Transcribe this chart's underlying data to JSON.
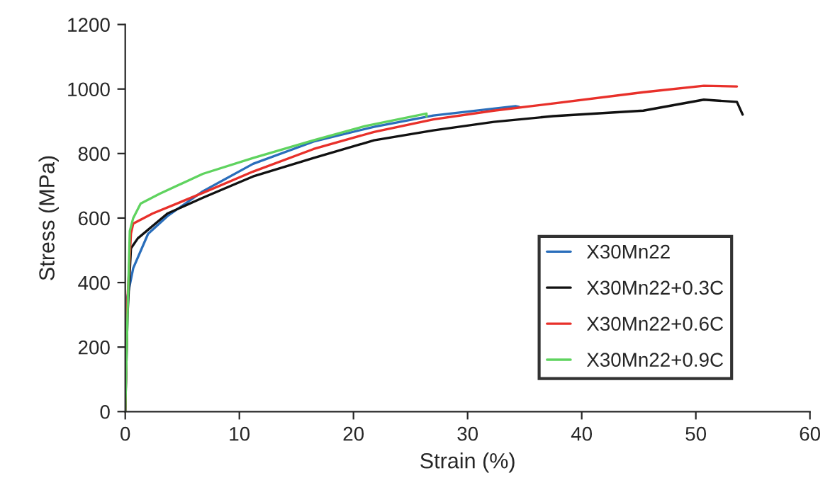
{
  "chart_data": {
    "type": "line",
    "xlabel": "Strain (%)",
    "ylabel": "Stress (MPa)",
    "xlim": [
      0,
      60
    ],
    "ylim": [
      0,
      1200
    ],
    "xticks": [
      0,
      10,
      20,
      30,
      40,
      50,
      60
    ],
    "yticks": [
      0,
      200,
      400,
      600,
      800,
      1000,
      1200
    ],
    "grid": false,
    "legend": "bottom right",
    "marker": "none",
    "line_style": "solid",
    "series": [
      {
        "name": "X30Mn22",
        "color": "#2a6ebb",
        "x": [
          0,
          0.17,
          0.7,
          2,
          3.7,
          6.8,
          11.2,
          16.5,
          21.8,
          27,
          34.2,
          34.5
        ],
        "values": [
          0,
          353,
          445,
          551,
          606,
          683,
          768,
          837,
          883,
          918,
          947,
          945
        ]
      },
      {
        "name": "X30Mn22+0.3C",
        "color": "#111111",
        "x": [
          0,
          0.2,
          0.5,
          1.1,
          3.7,
          6.8,
          11.2,
          16.5,
          21.8,
          27,
          32.3,
          37.5,
          45.4,
          50.7,
          53.6,
          54.1
        ],
        "values": [
          0,
          300,
          506,
          537,
          614,
          663,
          729,
          786,
          841,
          872,
          898,
          916,
          933,
          967,
          960,
          921
        ]
      },
      {
        "name": "X30Mn22+0.6C",
        "color": "#e8302a",
        "x": [
          0,
          0.2,
          0.5,
          0.7,
          2.4,
          6.8,
          11.2,
          16.5,
          21.8,
          27,
          32.3,
          37.5,
          45.4,
          50.7,
          53.6
        ],
        "values": [
          0,
          350,
          552,
          583,
          614,
          678,
          744,
          814,
          867,
          906,
          933,
          955,
          990,
          1010,
          1008
        ]
      },
      {
        "name": "X30Mn22+0.9C",
        "color": "#5fd35f",
        "x": [
          0,
          0.2,
          0.4,
          0.7,
          1.35,
          3,
          6.8,
          11.2,
          16.5,
          21,
          26.4,
          26.4
        ],
        "values": [
          0,
          300,
          560,
          600,
          645,
          675,
          737,
          786,
          841,
          885,
          924,
          915
        ]
      }
    ]
  }
}
